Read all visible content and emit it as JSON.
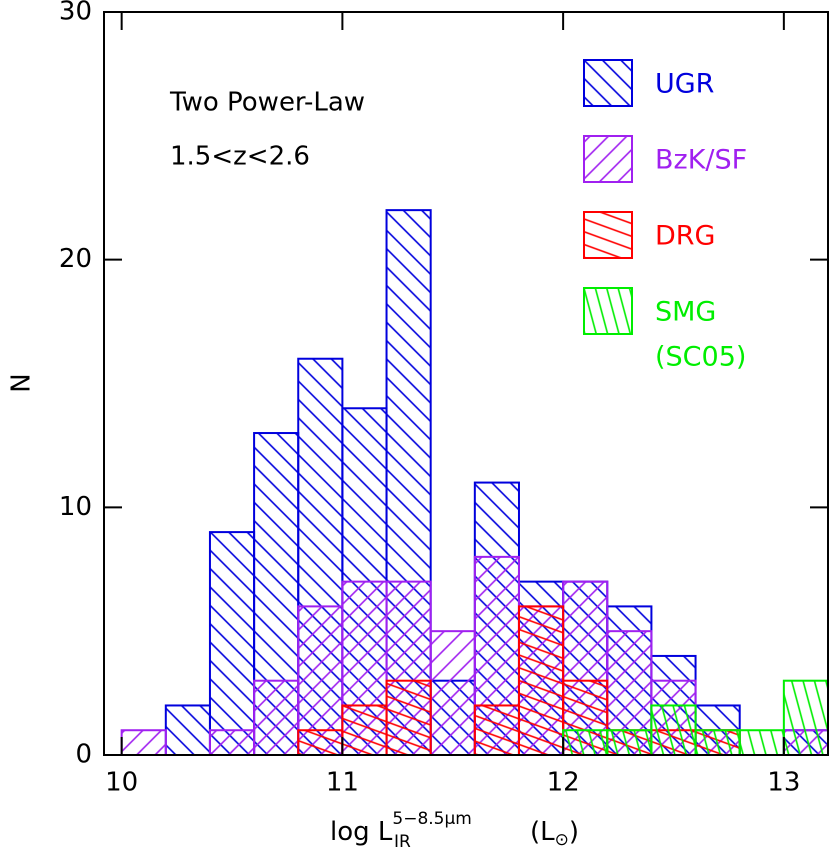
{
  "chart_data": {
    "type": "histogram",
    "annotations": [
      "Two Power-Law",
      "1.5<z<2.6"
    ],
    "x_label": {
      "main": "log L",
      "sub": "IR",
      "sup": "5−8.5μm",
      "unit_open": "(L",
      "unit_sub": "⊙",
      "unit_close": ")"
    },
    "y_label": "N",
    "bins": [
      10.0,
      10.2,
      10.4,
      10.6,
      10.8,
      11.0,
      11.2,
      11.4,
      11.6,
      11.8,
      12.0,
      12.2,
      12.4,
      12.6,
      12.8,
      13.0,
      13.2
    ],
    "series": [
      {
        "name": "UGR",
        "color": "#0000dd",
        "values": [
          0,
          2,
          9,
          13,
          16,
          14,
          22,
          3,
          11,
          7,
          7,
          6,
          4,
          2,
          0,
          1
        ]
      },
      {
        "name": "BzK/SF",
        "color": "#a020f0",
        "values": [
          1,
          0,
          1,
          3,
          6,
          7,
          7,
          5,
          8,
          6,
          7,
          5,
          3,
          1,
          0,
          1
        ]
      },
      {
        "name": "DRG",
        "color": "#ff0000",
        "values": [
          0,
          0,
          0,
          0,
          1,
          2,
          3,
          0,
          2,
          6,
          3,
          1,
          1,
          1,
          0,
          0
        ]
      },
      {
        "name": "SMG",
        "note": "(SC05)",
        "color": "#00ee00",
        "values": [
          0,
          0,
          0,
          0,
          0,
          0,
          0,
          0,
          0,
          0,
          1,
          1,
          2,
          1,
          1,
          3
        ]
      }
    ],
    "xlim": [
      9.92,
      13.2
    ],
    "ylim": [
      0,
      30
    ],
    "xticks": [
      10,
      11,
      12,
      13
    ],
    "yticks": [
      0,
      10,
      20,
      30
    ]
  }
}
